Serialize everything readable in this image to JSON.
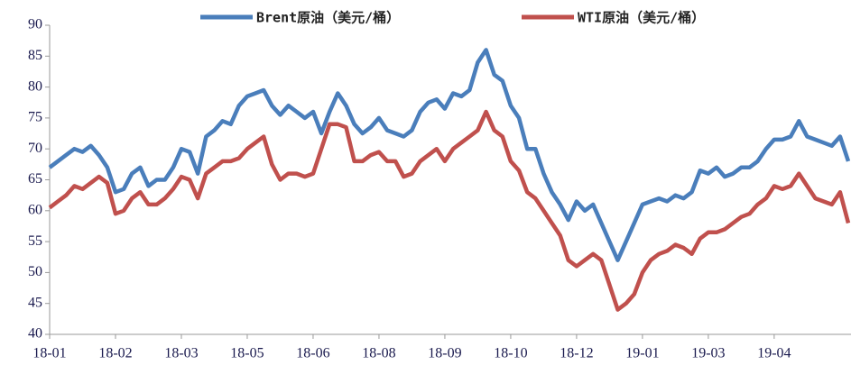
{
  "chart_data": {
    "type": "line",
    "categories": [
      "18-01",
      null,
      null,
      null,
      null,
      null,
      null,
      null,
      "18-02",
      null,
      null,
      null,
      null,
      null,
      null,
      null,
      "18-03",
      null,
      null,
      null,
      null,
      null,
      null,
      null,
      "18-05",
      null,
      null,
      null,
      null,
      null,
      null,
      null,
      "18-06",
      null,
      null,
      null,
      null,
      null,
      null,
      null,
      "18-08",
      null,
      null,
      null,
      null,
      null,
      null,
      null,
      "18-09",
      null,
      null,
      null,
      null,
      null,
      null,
      null,
      "18-10",
      null,
      null,
      null,
      null,
      null,
      null,
      null,
      "18-12",
      null,
      null,
      null,
      null,
      null,
      null,
      null,
      "19-01",
      null,
      null,
      null,
      null,
      null,
      null,
      null,
      "19-03",
      null,
      null,
      null,
      null,
      null,
      null,
      null,
      "19-04",
      null,
      null,
      null,
      null,
      null,
      null,
      null,
      null,
      null
    ],
    "series": [
      {
        "name": "Brent原油（美元/桶）",
        "color": "#4a7ebb",
        "values": [
          67,
          68,
          69,
          70,
          69.5,
          70.5,
          69,
          67,
          63,
          63.5,
          66,
          67,
          64,
          65,
          65,
          67,
          70,
          69.5,
          66,
          72,
          73,
          74.5,
          74,
          77,
          78.5,
          79,
          79.5,
          77,
          75.5,
          77,
          76,
          75,
          76,
          72.5,
          76,
          79,
          77,
          74,
          72.5,
          73.5,
          75,
          73,
          72.5,
          72,
          73,
          76,
          77.5,
          78,
          76.5,
          79,
          78.5,
          79.5,
          84,
          86,
          82,
          81,
          77,
          75,
          70,
          70,
          66,
          63,
          61,
          58.5,
          61.5,
          60,
          61,
          58,
          55,
          52,
          55,
          58,
          61,
          61.5,
          62,
          61.5,
          62.5,
          62,
          63,
          66.5,
          66,
          67,
          65.5,
          66,
          67,
          67,
          68,
          70,
          71.5,
          71.5,
          72,
          74.5,
          72,
          71.5,
          71,
          70.5,
          72,
          68
        ]
      },
      {
        "name": "WTI原油（美元/桶）",
        "color": "#c0504d",
        "values": [
          60.5,
          61.5,
          62.5,
          64,
          63.5,
          64.5,
          65.5,
          64.5,
          59.5,
          60,
          62,
          63,
          61,
          61,
          62,
          63.5,
          65.5,
          65,
          62,
          66,
          67,
          68,
          68,
          68.5,
          70,
          71,
          72,
          67.5,
          65,
          66,
          66,
          65.5,
          66,
          70,
          74,
          74,
          73.5,
          68,
          68,
          69,
          69.5,
          68,
          68,
          65.5,
          66,
          68,
          69,
          70,
          68,
          70,
          71,
          72,
          73,
          76,
          73,
          72,
          68,
          66.5,
          63,
          62,
          60,
          58,
          56,
          52,
          51,
          52,
          53,
          52,
          48,
          44,
          45,
          46.5,
          50,
          52,
          53,
          53.5,
          54.5,
          54,
          53,
          55.5,
          56.5,
          56.5,
          57,
          58,
          59,
          59.5,
          61,
          62,
          64,
          63.5,
          64,
          66,
          64,
          62,
          61.5,
          61,
          63,
          58
        ]
      }
    ],
    "ylim": [
      40,
      90
    ],
    "yticks": [
      40,
      45,
      50,
      55,
      60,
      65,
      70,
      75,
      80,
      85,
      90
    ],
    "grid": false
  }
}
